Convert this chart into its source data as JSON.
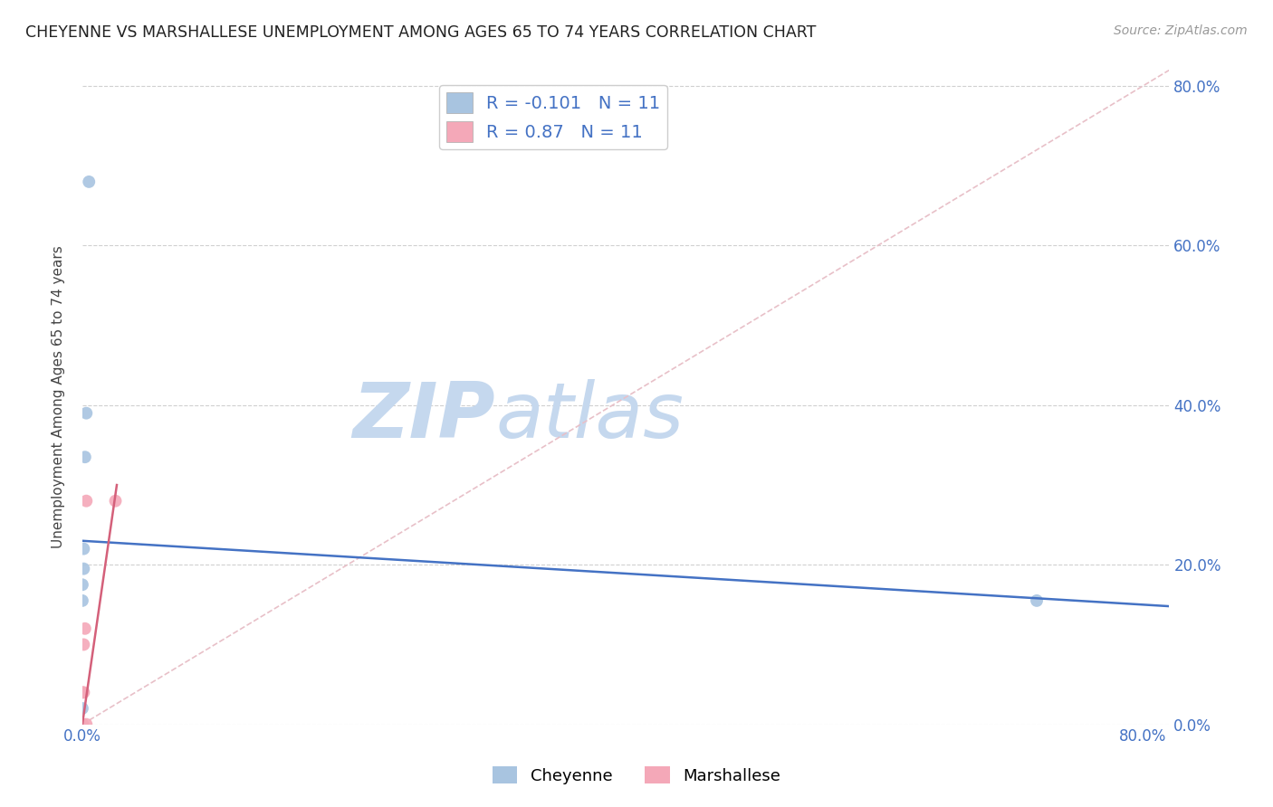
{
  "title": "CHEYENNE VS MARSHALLESE UNEMPLOYMENT AMONG AGES 65 TO 74 YEARS CORRELATION CHART",
  "source": "Source: ZipAtlas.com",
  "xlabel": "",
  "ylabel": "Unemployment Among Ages 65 to 74 years",
  "cheyenne_x": [
    0.0,
    0.0,
    0.0,
    0.0,
    0.0,
    0.001,
    0.001,
    0.002,
    0.003,
    0.005,
    0.72
  ],
  "cheyenne_y": [
    0.0,
    0.0,
    0.02,
    0.155,
    0.175,
    0.195,
    0.22,
    0.335,
    0.39,
    0.68,
    0.155
  ],
  "marshallese_x": [
    0.0,
    0.0,
    0.0,
    0.0,
    0.0,
    0.001,
    0.001,
    0.002,
    0.003,
    0.003,
    0.025
  ],
  "marshallese_y": [
    0.0,
    0.0,
    0.0,
    0.0,
    0.04,
    0.04,
    0.1,
    0.12,
    0.0,
    0.28,
    0.28
  ],
  "cheyenne_color": "#a8c4e0",
  "marshallese_color": "#f4a8b8",
  "cheyenne_line_color": "#4472c4",
  "marshallese_line_color": "#d4607a",
  "cheyenne_R": -0.101,
  "cheyenne_N": 11,
  "marshallese_R": 0.87,
  "marshallese_N": 11,
  "xlim": [
    0.0,
    0.82
  ],
  "ylim": [
    0.0,
    0.82
  ],
  "xticks": [
    0.0,
    0.2,
    0.4,
    0.6,
    0.8
  ],
  "yticks": [
    0.0,
    0.2,
    0.4,
    0.6,
    0.8
  ],
  "xticklabels_left": [
    "0.0%"
  ],
  "xticklabels_right": [
    "80.0%"
  ],
  "xticklabels_all": [
    "0.0%",
    "",
    "",
    "",
    "80.0%"
  ],
  "yticklabels_right": [
    "0.0%",
    "20.0%",
    "40.0%",
    "60.0%",
    "80.0%"
  ],
  "marker_size": 100,
  "background_color": "#ffffff",
  "watermark_zip": "ZIP",
  "watermark_atlas": "atlas",
  "watermark_color_zip": "#c5d8ee",
  "watermark_color_atlas": "#c5d8ee",
  "chey_trendline_start_y": 0.23,
  "chey_trendline_end_y": 0.148,
  "marsh_trendline_x0": 0.0,
  "marsh_trendline_y0": 0.0,
  "marsh_trendline_x1": 0.026,
  "marsh_trendline_y1": 0.3
}
